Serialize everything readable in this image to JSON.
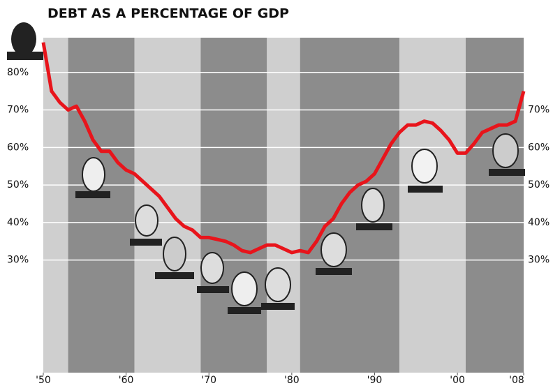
{
  "chart_data": {
    "type": "line",
    "title": "DEBT AS A PERCENTAGE OF GDP",
    "x": [
      1950,
      1951,
      1952,
      1953,
      1954,
      1955,
      1956,
      1957,
      1958,
      1959,
      1960,
      1961,
      1962,
      1963,
      1964,
      1965,
      1966,
      1967,
      1968,
      1969,
      1970,
      1971,
      1972,
      1973,
      1974,
      1975,
      1976,
      1977,
      1978,
      1979,
      1980,
      1981,
      1982,
      1983,
      1984,
      1985,
      1986,
      1987,
      1988,
      1989,
      1990,
      1991,
      1992,
      1993,
      1994,
      1995,
      1996,
      1997,
      1998,
      1999,
      2000,
      2001,
      2002,
      2003,
      2004,
      2005,
      2006,
      2007,
      2008
    ],
    "series": [
      {
        "color": "#e8141b",
        "values": [
          88,
          75,
          72,
          70,
          71,
          67,
          62,
          59,
          59,
          56,
          54,
          53,
          51,
          49,
          47,
          44,
          41,
          39,
          38,
          36,
          36,
          35.5,
          35,
          34,
          32.5,
          32,
          33,
          34,
          34,
          33,
          32,
          32.5,
          32,
          35,
          39,
          41,
          45,
          48,
          50,
          51,
          53,
          57,
          61,
          64,
          66,
          66,
          67,
          66.5,
          64.5,
          62,
          58.5,
          58.5,
          61,
          64,
          65,
          66,
          66,
          67,
          75
        ]
      }
    ],
    "bands": [
      {
        "start": 1950,
        "end": 1953,
        "color": "#cfcfcf"
      },
      {
        "start": 1953,
        "end": 1961,
        "color": "#8c8c8c"
      },
      {
        "start": 1961,
        "end": 1969,
        "color": "#cfcfcf"
      },
      {
        "start": 1969,
        "end": 1977,
        "color": "#8c8c8c"
      },
      {
        "start": 1977,
        "end": 1981,
        "color": "#cfcfcf"
      },
      {
        "start": 1981,
        "end": 1993,
        "color": "#8c8c8c"
      },
      {
        "start": 1993,
        "end": 2001,
        "color": "#cfcfcf"
      },
      {
        "start": 2001,
        "end": 2008,
        "color": "#8c8c8c"
      }
    ],
    "xlim": [
      1950,
      2008
    ],
    "xticks": [
      {
        "value": 1950,
        "label": "'50"
      },
      {
        "value": 1960,
        "label": "'60"
      },
      {
        "value": 1970,
        "label": "'70"
      },
      {
        "value": 1980,
        "label": "'80"
      },
      {
        "value": 1990,
        "label": "'90"
      },
      {
        "value": 2000,
        "label": "'00"
      },
      {
        "value": 2008,
        "label": "'08"
      }
    ],
    "ylim": [
      0,
      90
    ],
    "yticks": [
      {
        "value": 30,
        "label": "30%"
      },
      {
        "value": 40,
        "label": "40%"
      },
      {
        "value": 50,
        "label": "50%"
      },
      {
        "value": 60,
        "label": "60%"
      },
      {
        "value": 70,
        "label": "70%"
      },
      {
        "value": 80,
        "label": "80%"
      }
    ],
    "y2lim": [
      0,
      90
    ],
    "y2ticks": [
      {
        "value": 30,
        "label": "30%"
      },
      {
        "value": 40,
        "label": "40%"
      },
      {
        "value": 50,
        "label": "50%"
      },
      {
        "value": 60,
        "label": "60%"
      },
      {
        "value": 70,
        "label": "70%"
      }
    ],
    "grid": true
  }
}
